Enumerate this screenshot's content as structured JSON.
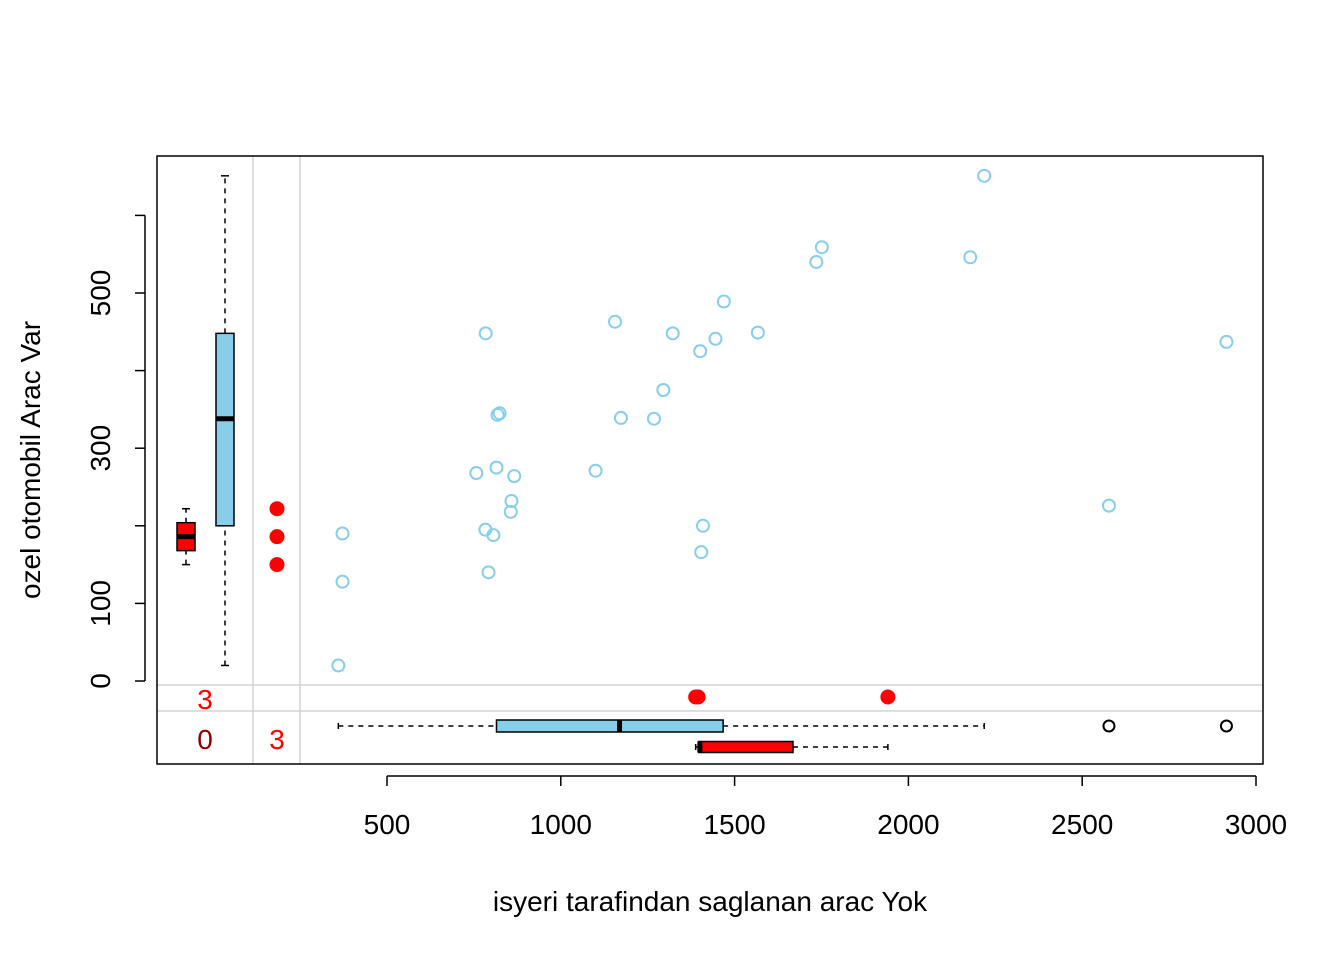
{
  "chart_data": {
    "type": "scatter",
    "title": "",
    "xlabel": "isyeri tarafindan saglanan arac Yok",
    "ylabel": "ozel otomobil Arac Var",
    "xlim": [
      340,
      3020
    ],
    "ylim": [
      -5,
      680
    ],
    "x_ticks": [
      "500",
      "1000",
      "1500",
      "2000",
      "2500",
      "3000"
    ],
    "y_ticks": [
      "0",
      "100",
      "300",
      "500"
    ],
    "y_minor_ticks": [
      200,
      400,
      600
    ],
    "colors": {
      "var": "#87CEEB",
      "yok": "#FF0000",
      "zero_count": "#8B0000",
      "grid": "#D3D3D3",
      "axis": "#000000"
    },
    "series": [
      {
        "name": "",
        "color": "#87CEEB",
        "marker": "open-circle",
        "points": [
          [
            360,
            20
          ],
          [
            372,
            190
          ],
          [
            372,
            128
          ],
          [
            757,
            268
          ],
          [
            783,
            195
          ],
          [
            784,
            448
          ],
          [
            792,
            140
          ],
          [
            806,
            188
          ],
          [
            815,
            275
          ],
          [
            818,
            343
          ],
          [
            824,
            345
          ],
          [
            856,
            218
          ],
          [
            858,
            232
          ],
          [
            866,
            264
          ],
          [
            1100,
            271
          ],
          [
            1156,
            463
          ],
          [
            1173,
            339
          ],
          [
            1268,
            338
          ],
          [
            1295,
            375
          ],
          [
            1322,
            448
          ],
          [
            1401,
            425
          ],
          [
            1404,
            166
          ],
          [
            1409,
            200
          ],
          [
            1445,
            441
          ],
          [
            1469,
            489
          ],
          [
            1567,
            449
          ],
          [
            1735,
            540
          ],
          [
            1751,
            559
          ],
          [
            2178,
            546
          ],
          [
            2218,
            651
          ],
          [
            2577,
            226
          ],
          [
            2915,
            437
          ]
        ]
      },
      {
        "name": "",
        "color": "#FF0000",
        "marker": "filled-circle",
        "points": [
          [
            1388,
            null
          ],
          [
            1395,
            null
          ],
          [
            1941,
            null
          ]
        ]
      },
      {
        "name": "",
        "color": "#FF0000",
        "marker": "filled-circle",
        "points": [
          [
            null,
            222
          ],
          [
            null,
            186
          ],
          [
            null,
            150
          ]
        ]
      }
    ],
    "marginal_boxplots": {
      "x_var": {
        "color": "#87CEEB",
        "whisker_low": 360,
        "q1": 815,
        "median": 1169,
        "q3": 1467,
        "whisker_high": 2218,
        "outliers": [
          2577,
          2915
        ]
      },
      "x_yok": {
        "color": "#FF0000",
        "whisker_low": 1388,
        "q1": 1397,
        "median": 1400,
        "q3": 1668,
        "whisker_high": 1941,
        "outliers": []
      },
      "y_var": {
        "color": "#87CEEB",
        "whisker_low": 20,
        "q1": 200,
        "median": 338,
        "q3": 448,
        "whisker_high": 651,
        "outliers": []
      },
      "y_yok": {
        "color": "#FF0000",
        "whisker_low": 150,
        "q1": 168,
        "median": 186,
        "q3": 204,
        "whisker_high": 222,
        "outliers": []
      }
    },
    "counts": {
      "missing_x_nonmissing_y_var": "3",
      "missing_both_var": "0",
      "missing_y_nonmissing_x_yok": "3",
      "missing_both_yok": "3"
    },
    "grid": false,
    "legend": "none"
  }
}
